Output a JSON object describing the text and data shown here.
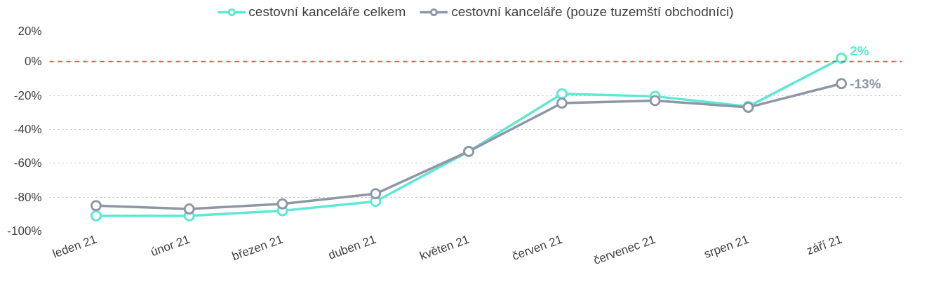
{
  "chart_data": {
    "type": "line",
    "categories": [
      "leden 21",
      "únor 21",
      "březen 21",
      "duben 21",
      "květen 21",
      "červen 21",
      "červenec 21",
      "srpen 21",
      "září 21"
    ],
    "series": [
      {
        "name": "cestovní kanceláře celkem",
        "color": "#5ee8d4",
        "values": [
          -91,
          -91,
          -88,
          -82.5,
          -53,
          -19,
          -20.5,
          -26.5,
          2
        ],
        "value_labels": [
          null,
          null,
          null,
          null,
          null,
          null,
          null,
          null,
          "2%"
        ]
      },
      {
        "name": "cestovní kanceláře (pouze tuzemští obchodníci)",
        "color": "#8e97a8",
        "values": [
          -85,
          -87,
          -84,
          -78,
          -53,
          -24.5,
          -23,
          -27,
          -13
        ],
        "value_labels": [
          null,
          null,
          null,
          null,
          null,
          null,
          null,
          null,
          "-13%"
        ]
      }
    ],
    "ylim": [
      -100,
      20
    ],
    "yticks": [
      {
        "value": 20,
        "label": "20%"
      },
      {
        "value": 0,
        "label": "0%"
      },
      {
        "value": -20,
        "label": "-20%"
      },
      {
        "value": -40,
        "label": "-40%"
      },
      {
        "value": -60,
        "label": "-60%"
      },
      {
        "value": -80,
        "label": "-80%"
      },
      {
        "value": -100,
        "label": "-100%"
      }
    ],
    "grid": "y",
    "legend": "top",
    "marker": "circle",
    "line_style": "solid",
    "ref_lines": [
      {
        "axis": "y",
        "value": 0,
        "color": "#ff4d4d",
        "line_style": "dashed"
      }
    ]
  }
}
